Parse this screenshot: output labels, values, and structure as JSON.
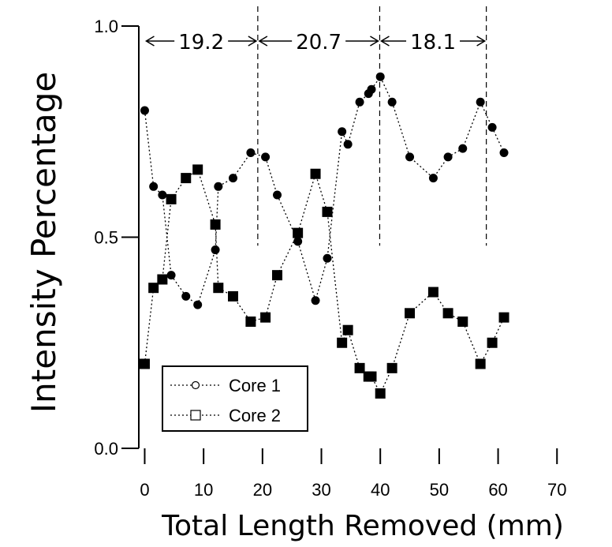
{
  "chart_data": {
    "type": "line",
    "xlabel": "Total Length Removed (mm)",
    "ylabel": "Intensity Percentage",
    "xlim": [
      -1,
      78
    ],
    "ylim": [
      0,
      1
    ],
    "x_ticks": [
      "0",
      "10",
      "20",
      "30",
      "40",
      "50",
      "60",
      "70"
    ],
    "y_ticks": [
      "0.0",
      "0.5",
      "1.0"
    ],
    "grid": false,
    "legend_position": "bottom-left",
    "markers": {
      "fill": "#000000",
      "line_color": "#000000"
    },
    "annotations": [
      {
        "label": "19.2",
        "from": 0,
        "to": 19.2
      },
      {
        "label": "20.7",
        "from": 19.2,
        "to": 39.9
      },
      {
        "label": "18.1",
        "from": 39.9,
        "to": 58
      }
    ],
    "dashed_verticals": [
      19.2,
      39.9,
      58
    ],
    "series": [
      {
        "name": "Core 1",
        "marker": "circle",
        "x": [
          0,
          1.5,
          3,
          4.5,
          7,
          9,
          12,
          12.5,
          15,
          18,
          20.5,
          22.5,
          26,
          29,
          31,
          33.5,
          34.5,
          36.5,
          38,
          38.5,
          40,
          42,
          45,
          49,
          51.5,
          54,
          57,
          59,
          61
        ],
        "y": [
          0.8,
          0.62,
          0.6,
          0.41,
          0.36,
          0.34,
          0.47,
          0.62,
          0.64,
          0.7,
          0.69,
          0.6,
          0.49,
          0.35,
          0.45,
          0.75,
          0.72,
          0.82,
          0.84,
          0.85,
          0.88,
          0.82,
          0.69,
          0.64,
          0.69,
          0.71,
          0.82,
          0.76,
          0.7
        ]
      },
      {
        "name": "Core 2",
        "marker": "square",
        "x": [
          0,
          1.5,
          3,
          4.5,
          7,
          9,
          12,
          12.5,
          15,
          18,
          20.5,
          22.5,
          26,
          29,
          31,
          33.5,
          34.5,
          36.5,
          38,
          38.5,
          40,
          42,
          45,
          49,
          51.5,
          54,
          57,
          59,
          61
        ],
        "y": [
          0.2,
          0.38,
          0.4,
          0.59,
          0.64,
          0.66,
          0.53,
          0.38,
          0.36,
          0.3,
          0.31,
          0.41,
          0.51,
          0.65,
          0.56,
          0.25,
          0.28,
          0.19,
          0.17,
          0.17,
          0.13,
          0.19,
          0.32,
          0.37,
          0.32,
          0.3,
          0.2,
          0.25,
          0.31
        ]
      }
    ]
  }
}
